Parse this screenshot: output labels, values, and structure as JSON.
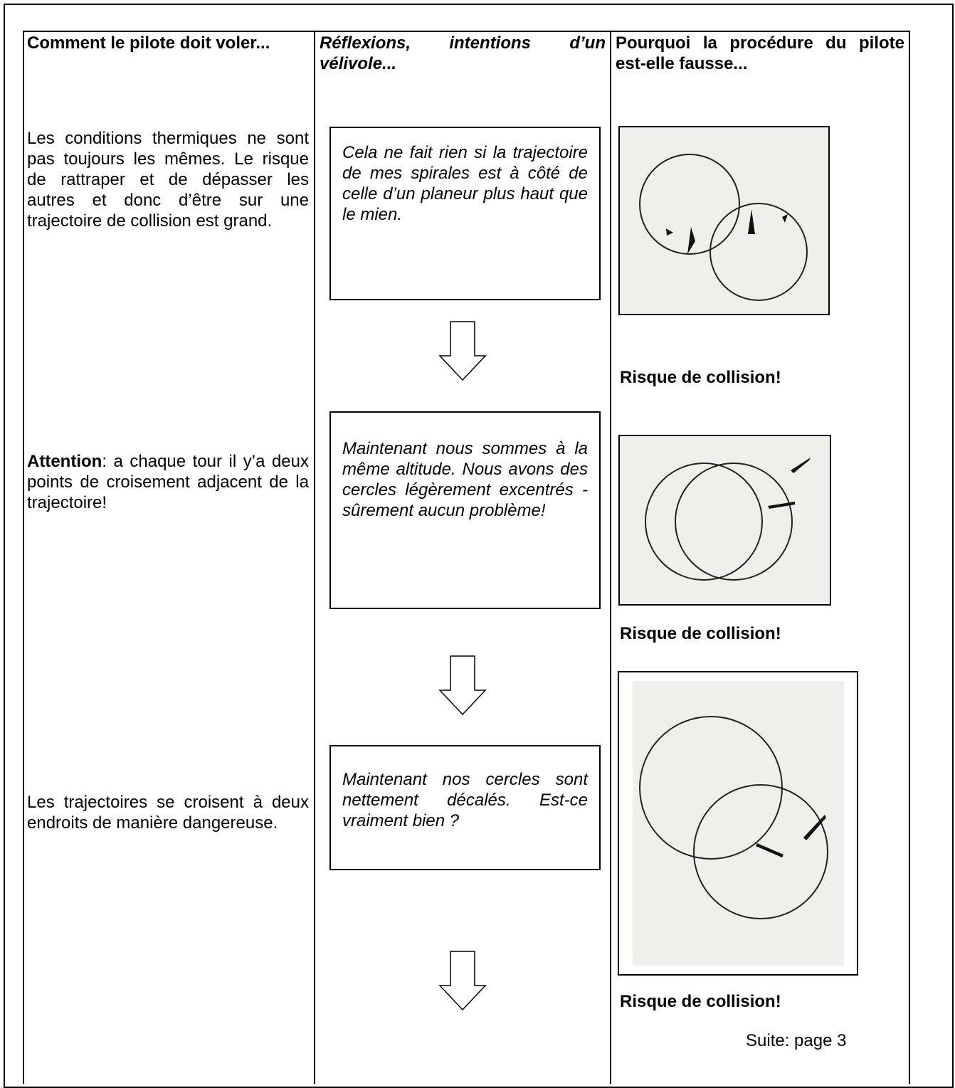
{
  "headers": [
    "Comment le pilote doit voler...",
    "Réflexions, intentions d’un vélivole...",
    "Pourquoi la procédure du pilote est-elle fausse..."
  ],
  "rows": [
    {
      "situation": {
        "text": "Les conditions thermiques ne sont pas toujours les mêmes. Le risque de rattraper et de dépasser les autres et donc d’être sur une trajectoire de collision est grand."
      },
      "thought": "Cela ne fait rien si la trajectoire de mes spirales est à côté de celle d’un planeur plus haut que le mien.",
      "caption": "Risque de collision!"
    },
    {
      "situation": {
        "emphasis": "Attention",
        "text": ": a chaque tour il y’a deux points de croisement adjacent de la trajectoire!"
      },
      "thought": "Maintenant nous sommes à la même altitude. Nous avons des cercles légèrement excentrés - sûrement aucun problème!",
      "caption": "Risque de collision!"
    },
    {
      "situation": {
        "text": "Les trajectoires se croisent à deux endroits de manière dangereuse."
      },
      "thought": "Maintenant nos cercles sont nettement décalés. Est-ce vraiment bien ?",
      "caption": "Risque de collision!"
    }
  ],
  "footer": "Suite: page 3"
}
